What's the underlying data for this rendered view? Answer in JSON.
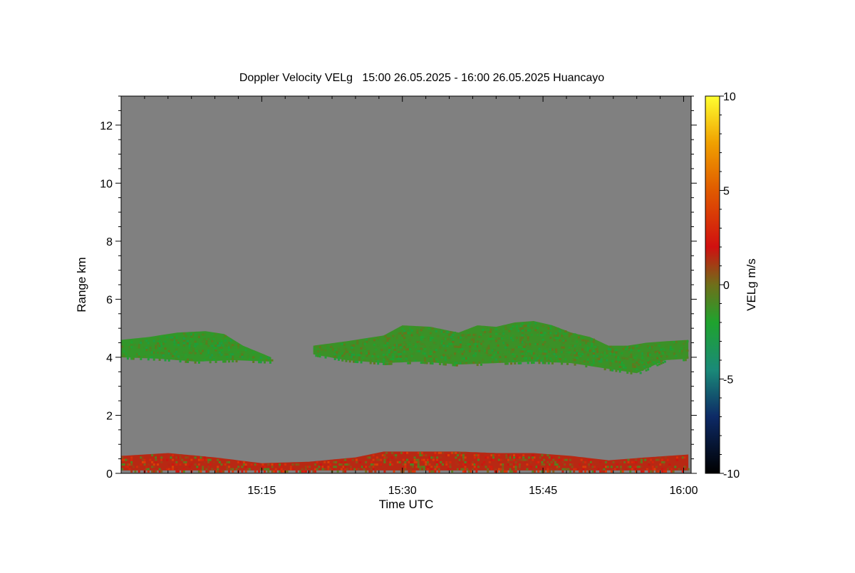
{
  "chart_data": {
    "type": "heatmap",
    "title": "Doppler Velocity VELg   15:00 26.05.2025 - 16:00 26.05.2025 Huancayo",
    "xlabel": "Time UTC",
    "ylabel": "Range km",
    "x_ticks": [
      {
        "value": 15,
        "label": "15:15"
      },
      {
        "value": 30,
        "label": "15:30"
      },
      {
        "value": 45,
        "label": "15:45"
      },
      {
        "value": 60,
        "label": "16:00"
      }
    ],
    "xlim_minutes": [
      0,
      60.8
    ],
    "y_ticks": [
      {
        "value": 0,
        "label": "0"
      },
      {
        "value": 2,
        "label": "2"
      },
      {
        "value": 4,
        "label": "4"
      },
      {
        "value": 6,
        "label": "6"
      },
      {
        "value": 8,
        "label": "8"
      },
      {
        "value": 10,
        "label": "10"
      },
      {
        "value": 12,
        "label": "12"
      }
    ],
    "ylim_km": [
      0,
      13
    ],
    "background_color": "#808080",
    "colorbar": {
      "label": "VELg m/s",
      "range": [
        -10,
        10
      ],
      "ticks": [
        {
          "value": 10,
          "label": "10"
        },
        {
          "value": 5,
          "label": "5"
        },
        {
          "value": 0,
          "label": "0"
        },
        {
          "value": -5,
          "label": "-5"
        },
        {
          "value": -10,
          "label": "-10"
        }
      ],
      "stops": [
        {
          "value": -10,
          "color": "#000000"
        },
        {
          "value": -7,
          "color": "#0d2a66"
        },
        {
          "value": -4.5,
          "color": "#1a8a78"
        },
        {
          "value": -2,
          "color": "#1fa32e"
        },
        {
          "value": 0,
          "color": "#6f6f1a"
        },
        {
          "value": 2,
          "color": "#d01010"
        },
        {
          "value": 5,
          "color": "#e05a00"
        },
        {
          "value": 7.5,
          "color": "#f0a000"
        },
        {
          "value": 10,
          "color": "#ffff30"
        }
      ]
    },
    "regions": [
      {
        "name": "cloud-layer-1",
        "start_min": 0,
        "end_min": 16,
        "base_km": [
          [
            0,
            4.0
          ],
          [
            4,
            3.95
          ],
          [
            8,
            3.85
          ],
          [
            12,
            3.9
          ],
          [
            16,
            3.85
          ]
        ],
        "top_km": [
          [
            0,
            4.6
          ],
          [
            3,
            4.7
          ],
          [
            6,
            4.85
          ],
          [
            9,
            4.9
          ],
          [
            11,
            4.8
          ],
          [
            13,
            4.4
          ],
          [
            16,
            4.0
          ]
        ],
        "velocity": -1.5
      },
      {
        "name": "cloud-layer-2",
        "start_min": 20.5,
        "end_min": 60.5,
        "base_km": [
          [
            20.5,
            4.1
          ],
          [
            24,
            3.9
          ],
          [
            28,
            3.8
          ],
          [
            32,
            3.85
          ],
          [
            36,
            3.75
          ],
          [
            40,
            3.8
          ],
          [
            44,
            3.85
          ],
          [
            48,
            3.8
          ],
          [
            52,
            3.6
          ],
          [
            55,
            3.45
          ],
          [
            58,
            3.9
          ],
          [
            60.5,
            3.95
          ]
        ],
        "top_km": [
          [
            20.5,
            4.4
          ],
          [
            24,
            4.55
          ],
          [
            28,
            4.75
          ],
          [
            30,
            5.1
          ],
          [
            33,
            5.05
          ],
          [
            36,
            4.85
          ],
          [
            38,
            5.1
          ],
          [
            40,
            5.05
          ],
          [
            42,
            5.2
          ],
          [
            44,
            5.25
          ],
          [
            46,
            5.1
          ],
          [
            48,
            4.85
          ],
          [
            50,
            4.7
          ],
          [
            52,
            4.4
          ],
          [
            54,
            4.4
          ],
          [
            56,
            4.5
          ],
          [
            58,
            4.55
          ],
          [
            60.5,
            4.6
          ]
        ],
        "velocity": -1.3
      },
      {
        "name": "boundary-layer",
        "start_min": 0,
        "end_min": 60.5,
        "base_km": [
          [
            0,
            0.1
          ],
          [
            60.5,
            0.1
          ]
        ],
        "top_km": [
          [
            0,
            0.6
          ],
          [
            5,
            0.7
          ],
          [
            10,
            0.55
          ],
          [
            15,
            0.35
          ],
          [
            20,
            0.4
          ],
          [
            25,
            0.55
          ],
          [
            28,
            0.75
          ],
          [
            32,
            0.75
          ],
          [
            36,
            0.75
          ],
          [
            40,
            0.7
          ],
          [
            44,
            0.7
          ],
          [
            48,
            0.6
          ],
          [
            52,
            0.45
          ],
          [
            56,
            0.55
          ],
          [
            60.5,
            0.65
          ]
        ],
        "velocity": 1.5
      }
    ]
  }
}
